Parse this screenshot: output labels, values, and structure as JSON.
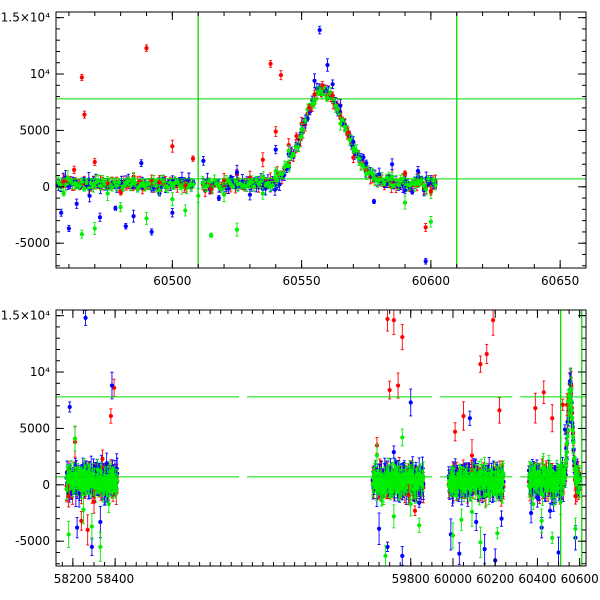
{
  "colors": {
    "red": "#ff0000",
    "blue": "#0000ff",
    "green": "#00ee00",
    "refline": "#00dd00",
    "axis": "#000000"
  },
  "chart_data": [
    {
      "type": "scatter",
      "title": "",
      "xlabel": "",
      "ylabel": "",
      "xlim": [
        60455,
        60660
      ],
      "ylim": [
        -7200,
        15500
      ],
      "grid": false,
      "error_bars": true,
      "x_ticks": [
        {
          "value": 60500,
          "label": "60500"
        },
        {
          "value": 60550,
          "label": "60550"
        },
        {
          "value": 60600,
          "label": "60600"
        },
        {
          "value": 60650,
          "label": "60650"
        }
      ],
      "y_ticks": [
        {
          "value": 15000,
          "label": "1.5×10⁴"
        },
        {
          "value": 10000,
          "label": "10⁴"
        },
        {
          "value": 5000,
          "label": "5000"
        },
        {
          "value": 0,
          "label": "0"
        },
        {
          "value": -5000,
          "label": "-5000"
        }
      ],
      "reference_lines": {
        "vertical": [
          60510,
          60610
        ],
        "horizontal": [
          7800,
          700
        ]
      },
      "peak": {
        "x": 60558,
        "y": 8600
      },
      "series": [
        {
          "color": "red",
          "values": [
            [
              60458,
              500
            ],
            [
              60462,
              1500
            ],
            [
              60465,
              9700
            ],
            [
              60466,
              6400
            ],
            [
              60470,
              2200
            ],
            [
              60475,
              300
            ],
            [
              60480,
              -500
            ],
            [
              60485,
              900
            ],
            [
              60490,
              12300
            ],
            [
              60492,
              600
            ],
            [
              60495,
              400
            ],
            [
              60500,
              3600
            ],
            [
              60505,
              100
            ],
            [
              60508,
              2500
            ],
            [
              60515,
              -200
            ],
            [
              60520,
              600
            ],
            [
              60525,
              1100
            ],
            [
              60530,
              800
            ],
            [
              60535,
              2400
            ],
            [
              60538,
              10900
            ],
            [
              60540,
              4900
            ],
            [
              60542,
              9900
            ],
            [
              60545,
              3700
            ],
            [
              60548,
              4500
            ],
            [
              60550,
              5600
            ],
            [
              60553,
              7000
            ],
            [
              60555,
              8200
            ],
            [
              60558,
              9000
            ],
            [
              60560,
              8000
            ],
            [
              60562,
              8100
            ],
            [
              60565,
              6200
            ],
            [
              60568,
              4800
            ],
            [
              60570,
              2600
            ],
            [
              60575,
              1400
            ],
            [
              60580,
              900
            ],
            [
              60585,
              900
            ],
            [
              60590,
              1200
            ],
            [
              60595,
              600
            ],
            [
              60598,
              -3600
            ],
            [
              60600,
              -400
            ]
          ]
        },
        {
          "color": "blue",
          "values": [
            [
              60457,
              -2300
            ],
            [
              60460,
              -3700
            ],
            [
              60463,
              -1500
            ],
            [
              60468,
              -800
            ],
            [
              60472,
              -2700
            ],
            [
              60478,
              -1900
            ],
            [
              60482,
              -3500
            ],
            [
              60485,
              -2600
            ],
            [
              60488,
              2100
            ],
            [
              60492,
              -4000
            ],
            [
              60495,
              -600
            ],
            [
              60500,
              -2300
            ],
            [
              60512,
              2300
            ],
            [
              60518,
              -1000
            ],
            [
              60525,
              1300
            ],
            [
              60530,
              -700
            ],
            [
              60535,
              -200
            ],
            [
              60540,
              3300
            ],
            [
              60545,
              2900
            ],
            [
              60550,
              5100
            ],
            [
              60555,
              9400
            ],
            [
              60557,
              13900
            ],
            [
              60560,
              10800
            ],
            [
              60562,
              9100
            ],
            [
              60565,
              7200
            ],
            [
              60570,
              4000
            ],
            [
              60575,
              2100
            ],
            [
              60578,
              -1300
            ],
            [
              60580,
              1100
            ],
            [
              60585,
              2000
            ],
            [
              60590,
              -300
            ],
            [
              60595,
              1400
            ],
            [
              60598,
              -6600
            ]
          ]
        },
        {
          "color": "green",
          "values": [
            [
              60458,
              -600
            ],
            [
              60465,
              -4200
            ],
            [
              60470,
              -3700
            ],
            [
              60475,
              -600
            ],
            [
              60480,
              -1800
            ],
            [
              60485,
              700
            ],
            [
              60490,
              -2800
            ],
            [
              60495,
              -300
            ],
            [
              60500,
              -1100
            ],
            [
              60505,
              -2100
            ],
            [
              60510,
              -800
            ],
            [
              60515,
              -4300
            ],
            [
              60520,
              -700
            ],
            [
              60525,
              -3800
            ],
            [
              60530,
              300
            ],
            [
              60535,
              -600
            ],
            [
              60540,
              1400
            ],
            [
              60545,
              3200
            ],
            [
              60550,
              5100
            ],
            [
              60555,
              7400
            ],
            [
              60558,
              8200
            ],
            [
              60560,
              7900
            ],
            [
              60565,
              5600
            ],
            [
              60570,
              3300
            ],
            [
              60575,
              1200
            ],
            [
              60580,
              600
            ],
            [
              60585,
              900
            ],
            [
              60590,
              -1400
            ],
            [
              60595,
              500
            ],
            [
              60600,
              -3100
            ]
          ]
        }
      ]
    },
    {
      "type": "scatter",
      "title": "",
      "xlabel": "",
      "ylabel": "",
      "xlim": [
        58120,
        60630
      ],
      "ylim": [
        -7200,
        15500
      ],
      "grid": false,
      "error_bars": true,
      "x_ticks": [
        {
          "value": 58200,
          "label": "58200"
        },
        {
          "value": 58400,
          "label": "58400"
        },
        {
          "value": 59800,
          "label": "59800"
        },
        {
          "value": 60000,
          "label": "60000"
        },
        {
          "value": 60200,
          "label": "60200"
        },
        {
          "value": 60400,
          "label": "60400"
        },
        {
          "value": 60600,
          "label": "60600"
        }
      ],
      "y_ticks": [
        {
          "value": 15000,
          "label": "1.5×10⁴"
        },
        {
          "value": 10000,
          "label": "10⁴"
        },
        {
          "value": 5000,
          "label": "5000"
        },
        {
          "value": 0,
          "label": "0"
        },
        {
          "value": -5000,
          "label": "-5000"
        }
      ],
      "reference_lines": {
        "vertical": [
          60510,
          60610
        ],
        "horizontal": [
          7800,
          700
        ]
      },
      "seasons": [
        [
          58170,
          58410
        ],
        [
          59620,
          59860
        ],
        [
          59980,
          60240
        ],
        [
          60360,
          60600
        ]
      ],
      "series": [
        {
          "color": "red",
          "values": [
            [
              58180,
              -1000
            ],
            [
              58210,
              3800
            ],
            [
              58240,
              -3200
            ],
            [
              58270,
              -4000
            ],
            [
              58300,
              -1500
            ],
            [
              58340,
              2300
            ],
            [
              58380,
              6100
            ],
            [
              58395,
              8600
            ],
            [
              59640,
              3500
            ],
            [
              59690,
              14700
            ],
            [
              59700,
              8400
            ],
            [
              59720,
              14600
            ],
            [
              59740,
              8800
            ],
            [
              59760,
              13100
            ],
            [
              59790,
              -900
            ],
            [
              59820,
              -2300
            ],
            [
              60010,
              4700
            ],
            [
              60050,
              6100
            ],
            [
              60090,
              2600
            ],
            [
              60130,
              10700
            ],
            [
              60160,
              11600
            ],
            [
              60190,
              14600
            ],
            [
              60220,
              6600
            ],
            [
              60390,
              6800
            ],
            [
              60430,
              8200
            ],
            [
              60470,
              5900
            ],
            [
              60520,
              7100
            ],
            [
              60540,
              7100
            ],
            [
              60560,
              8800
            ],
            [
              60580,
              -1000
            ]
          ]
        },
        {
          "color": "blue",
          "values": [
            [
              58185,
              6900
            ],
            [
              58220,
              -3800
            ],
            [
              58260,
              14800
            ],
            [
              58290,
              -5500
            ],
            [
              58330,
              -3300
            ],
            [
              58360,
              1900
            ],
            [
              58385,
              8800
            ],
            [
              59650,
              -3900
            ],
            [
              59690,
              -5500
            ],
            [
              59720,
              2900
            ],
            [
              59760,
              -6300
            ],
            [
              59800,
              7300
            ],
            [
              59840,
              -1600
            ],
            [
              59990,
              -4400
            ],
            [
              60030,
              -6100
            ],
            [
              60080,
              5900
            ],
            [
              60110,
              -3300
            ],
            [
              60150,
              -5700
            ],
            [
              60200,
              -6700
            ],
            [
              60230,
              -3000
            ],
            [
              60370,
              -2500
            ],
            [
              60420,
              -3800
            ],
            [
              60460,
              -2300
            ],
            [
              60500,
              -6000
            ],
            [
              60530,
              4900
            ],
            [
              60555,
              9200
            ],
            [
              60580,
              -4700
            ]
          ]
        },
        {
          "color": "green",
          "values": [
            [
              58180,
              -4400
            ],
            [
              58210,
              4100
            ],
            [
              58250,
              -2200
            ],
            [
              58290,
              -3700
            ],
            [
              58330,
              -5500
            ],
            [
              58370,
              -1700
            ],
            [
              59640,
              2600
            ],
            [
              59680,
              -6300
            ],
            [
              59720,
              -2800
            ],
            [
              59760,
              4200
            ],
            [
              59800,
              -1700
            ],
            [
              59840,
              -3600
            ],
            [
              60000,
              -4500
            ],
            [
              60040,
              -3100
            ],
            [
              60090,
              -2400
            ],
            [
              60130,
              -5100
            ],
            [
              60170,
              -800
            ],
            [
              60210,
              -4300
            ],
            [
              60380,
              -1700
            ],
            [
              60420,
              -3200
            ],
            [
              60470,
              -4700
            ],
            [
              60510,
              -1500
            ],
            [
              60545,
              7400
            ],
            [
              60560,
              8500
            ],
            [
              60580,
              -3900
            ]
          ]
        }
      ]
    }
  ]
}
